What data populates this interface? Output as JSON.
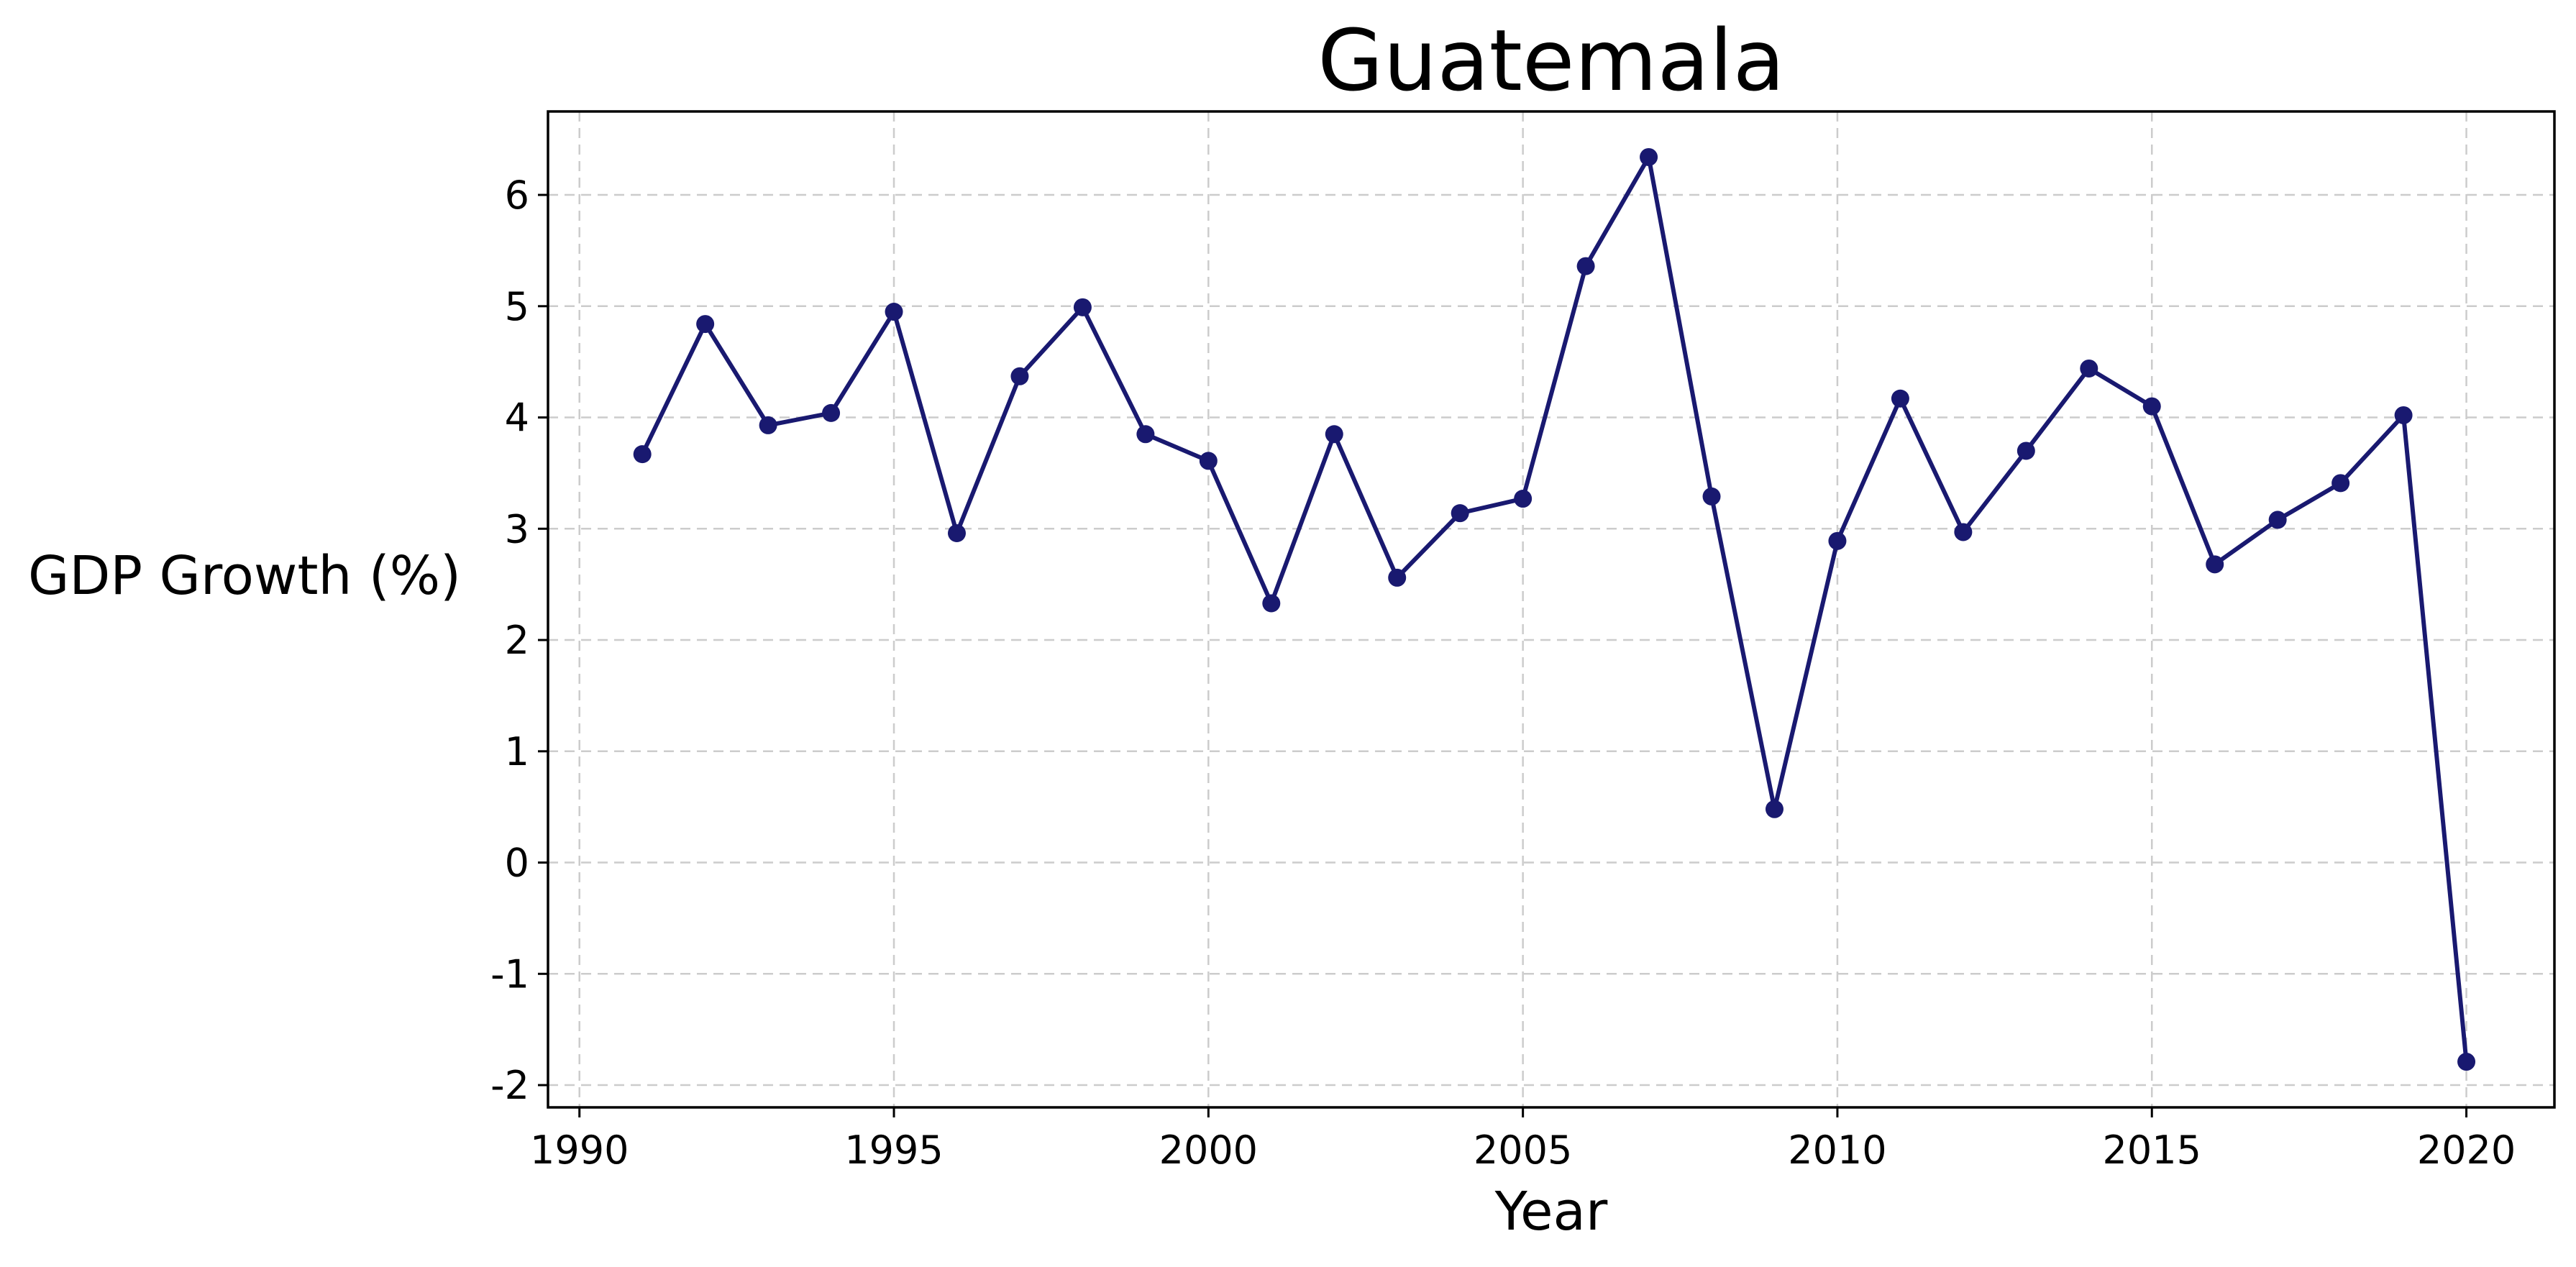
{
  "chart_data": {
    "type": "line",
    "title": "Guatemala",
    "xlabel": "Year",
    "ylabel": "GDP Growth (%)",
    "xlim": [
      1989.5,
      2021.4
    ],
    "ylim": [
      -2.2,
      6.75
    ],
    "grid": true,
    "x_ticks": [
      1990,
      1995,
      2000,
      2005,
      2010,
      2015,
      2020
    ],
    "x_tick_labels": [
      "1990",
      "1995",
      "2000",
      "2005",
      "2010",
      "2015",
      "2020"
    ],
    "y_ticks": [
      -2,
      -1,
      0,
      1,
      2,
      3,
      4,
      5,
      6
    ],
    "y_tick_labels": [
      "-2",
      "-1",
      "0",
      "1",
      "2",
      "3",
      "4",
      "5",
      "6"
    ],
    "series": [
      {
        "color": "#191970",
        "x": [
          1991,
          1992,
          1993,
          1994,
          1995,
          1996,
          1997,
          1998,
          1999,
          2000,
          2001,
          2002,
          2003,
          2004,
          2005,
          2006,
          2007,
          2008,
          2009,
          2010,
          2011,
          2012,
          2013,
          2014,
          2015,
          2016,
          2017,
          2018,
          2019,
          2020
        ],
        "y": [
          3.67,
          4.84,
          3.93,
          4.04,
          4.95,
          2.96,
          4.37,
          4.99,
          3.85,
          3.61,
          2.33,
          3.85,
          2.56,
          3.14,
          3.27,
          5.36,
          6.34,
          3.29,
          0.48,
          2.89,
          4.17,
          2.97,
          3.7,
          4.44,
          4.1,
          2.68,
          3.08,
          3.41,
          4.02,
          -1.79
        ]
      }
    ]
  }
}
